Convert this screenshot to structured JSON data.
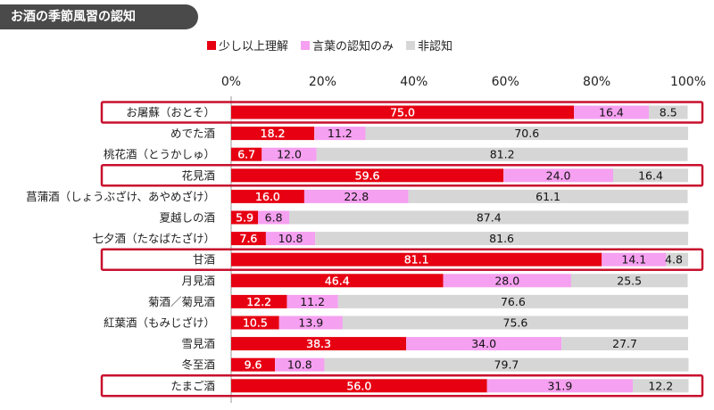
{
  "title": "お酒の季節風習の認知",
  "colors": {
    "understand": "#e60012",
    "word_only": "#f5a0f0",
    "unknown": "#d6d6d6",
    "highlight_border": "#c8102e",
    "title_bg": "#4a4a4a"
  },
  "chart_data": {
    "type": "bar",
    "orientation": "horizontal",
    "stacked": true,
    "x_ticks": [
      "0%",
      "20%",
      "40%",
      "60%",
      "80%",
      "100%"
    ],
    "xlim": [
      0,
      100
    ],
    "legend_position": "top",
    "categories": [
      "お屠蘇（おとそ）",
      "めでた酒",
      "桃花酒（とうかしゅ）",
      "花見酒",
      "菖蒲酒（しょうぶざけ、あやめざけ）",
      "夏越しの酒",
      "七夕酒（たなばたざけ）",
      "甘酒",
      "月見酒",
      "菊酒／菊見酒",
      "紅葉酒（もみじざけ）",
      "雪見酒",
      "冬至酒",
      "たまご酒"
    ],
    "highlighted": [
      "お屠蘇（おとそ）",
      "花見酒",
      "甘酒",
      "たまご酒"
    ],
    "series": [
      {
        "name": "少し以上理解",
        "color_key": "understand",
        "values": [
          75.0,
          18.2,
          6.7,
          59.6,
          16.0,
          5.9,
          7.6,
          81.1,
          46.4,
          12.2,
          10.5,
          38.3,
          9.6,
          56.0
        ]
      },
      {
        "name": "言葉の認知のみ",
        "color_key": "word_only",
        "values": [
          16.4,
          11.2,
          12.0,
          24.0,
          22.8,
          6.8,
          10.8,
          14.1,
          28.0,
          11.2,
          13.9,
          34.0,
          10.8,
          31.9
        ]
      },
      {
        "name": "非認知",
        "color_key": "unknown",
        "values": [
          8.5,
          70.6,
          81.2,
          16.4,
          61.1,
          87.4,
          81.6,
          4.8,
          25.5,
          76.6,
          75.6,
          27.7,
          79.7,
          12.2
        ]
      }
    ]
  }
}
